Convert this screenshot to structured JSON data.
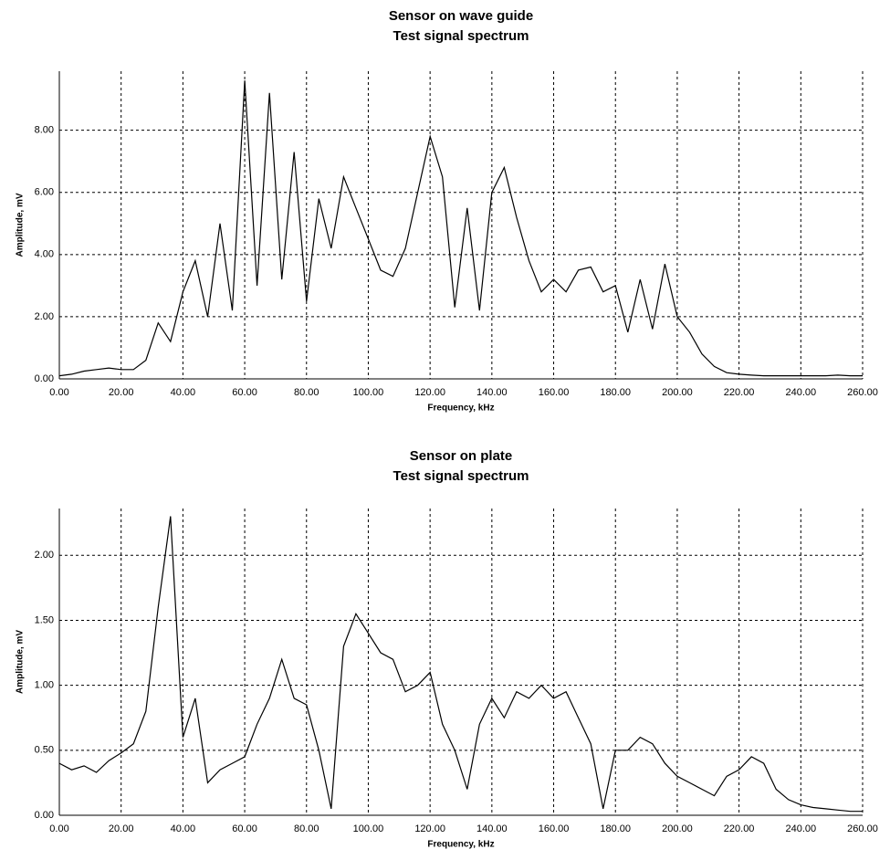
{
  "chart_data": [
    {
      "type": "line",
      "title": "Sensor on wave guide",
      "subtitle": "Test signal spectrum",
      "x_label": "Frequency, kHz",
      "y_label": "Amplitude, mV",
      "color": "#000000",
      "grid": true,
      "x": [
        0,
        4,
        8,
        12,
        16,
        20,
        24,
        28,
        32,
        36,
        40,
        44,
        48,
        52,
        56,
        60,
        64,
        68,
        72,
        76,
        80,
        84,
        88,
        92,
        96,
        100,
        104,
        108,
        112,
        116,
        120,
        124,
        128,
        132,
        136,
        140,
        144,
        148,
        152,
        156,
        160,
        164,
        168,
        172,
        176,
        180,
        184,
        188,
        192,
        196,
        200,
        204,
        208,
        212,
        216,
        220,
        224,
        228,
        232,
        236,
        240,
        244,
        248,
        252,
        256,
        260
      ],
      "values": [
        0.1,
        0.15,
        0.25,
        0.3,
        0.35,
        0.3,
        0.3,
        0.6,
        1.8,
        1.2,
        2.8,
        3.8,
        2.0,
        5.0,
        2.2,
        9.6,
        3.0,
        9.2,
        3.2,
        7.3,
        2.5,
        5.8,
        4.2,
        6.5,
        5.5,
        4.5,
        3.5,
        3.3,
        4.2,
        6.0,
        7.8,
        6.5,
        2.3,
        5.5,
        2.2,
        6.0,
        6.8,
        5.2,
        3.8,
        2.8,
        3.2,
        2.8,
        3.5,
        3.6,
        2.8,
        3.0,
        1.5,
        3.2,
        1.6,
        3.7,
        2.0,
        1.5,
        0.8,
        0.4,
        0.2,
        0.15,
        0.12,
        0.1,
        0.1,
        0.1,
        0.1,
        0.1,
        0.1,
        0.12,
        0.1,
        0.1
      ],
      "xlim": [
        0,
        260
      ],
      "ylim": [
        0,
        9.9
      ],
      "xticks": [
        {
          "value": 0,
          "label": "0.00"
        },
        {
          "value": 20,
          "label": "20.00"
        },
        {
          "value": 40,
          "label": "40.00"
        },
        {
          "value": 60,
          "label": "60.00"
        },
        {
          "value": 80,
          "label": "80.00"
        },
        {
          "value": 100,
          "label": "100.00"
        },
        {
          "value": 120,
          "label": "120.00"
        },
        {
          "value": 140,
          "label": "140.00"
        },
        {
          "value": 160,
          "label": "160.00"
        },
        {
          "value": 180,
          "label": "180.00"
        },
        {
          "value": 200,
          "label": "200.00"
        },
        {
          "value": 220,
          "label": "220.00"
        },
        {
          "value": 240,
          "label": "240.00"
        },
        {
          "value": 260,
          "label": "260.00"
        }
      ],
      "yticks": [
        {
          "value": 0,
          "label": "0.00"
        },
        {
          "value": 2,
          "label": "2.00"
        },
        {
          "value": 4,
          "label": "4.00"
        },
        {
          "value": 6,
          "label": "6.00"
        },
        {
          "value": 8,
          "label": "8.00"
        }
      ]
    },
    {
      "type": "line",
      "title": "Sensor on plate",
      "subtitle": "Test signal spectrum",
      "x_label": "Frequency, kHz",
      "y_label": "Amplitude, mV",
      "color": "#000000",
      "grid": true,
      "x": [
        0,
        4,
        8,
        12,
        16,
        20,
        24,
        28,
        32,
        36,
        40,
        44,
        48,
        52,
        56,
        60,
        64,
        68,
        72,
        76,
        80,
        84,
        88,
        92,
        96,
        100,
        104,
        108,
        112,
        116,
        120,
        124,
        128,
        132,
        136,
        140,
        144,
        148,
        152,
        156,
        160,
        164,
        168,
        172,
        176,
        180,
        184,
        188,
        192,
        196,
        200,
        204,
        208,
        212,
        216,
        220,
        224,
        228,
        232,
        236,
        240,
        244,
        248,
        252,
        256,
        260
      ],
      "values": [
        0.4,
        0.35,
        0.38,
        0.33,
        0.42,
        0.48,
        0.55,
        0.8,
        1.6,
        2.3,
        0.6,
        0.9,
        0.25,
        0.35,
        0.4,
        0.45,
        0.7,
        0.9,
        1.2,
        0.9,
        0.85,
        0.5,
        0.05,
        1.3,
        1.55,
        1.4,
        1.25,
        1.2,
        0.95,
        1.0,
        1.1,
        0.7,
        0.5,
        0.2,
        0.7,
        0.9,
        0.75,
        0.95,
        0.9,
        1.0,
        0.9,
        0.95,
        0.75,
        0.55,
        0.05,
        0.5,
        0.5,
        0.6,
        0.55,
        0.4,
        0.3,
        0.25,
        0.2,
        0.15,
        0.3,
        0.35,
        0.45,
        0.4,
        0.2,
        0.12,
        0.08,
        0.06,
        0.05,
        0.04,
        0.03,
        0.03
      ],
      "xlim": [
        0,
        260
      ],
      "ylim": [
        0,
        2.36
      ],
      "xticks": [
        {
          "value": 0,
          "label": "0.00"
        },
        {
          "value": 20,
          "label": "20.00"
        },
        {
          "value": 40,
          "label": "40.00"
        },
        {
          "value": 60,
          "label": "60.00"
        },
        {
          "value": 80,
          "label": "80.00"
        },
        {
          "value": 100,
          "label": "100.00"
        },
        {
          "value": 120,
          "label": "120.00"
        },
        {
          "value": 140,
          "label": "140.00"
        },
        {
          "value": 160,
          "label": "160.00"
        },
        {
          "value": 180,
          "label": "180.00"
        },
        {
          "value": 200,
          "label": "200.00"
        },
        {
          "value": 220,
          "label": "220.00"
        },
        {
          "value": 240,
          "label": "240.00"
        },
        {
          "value": 260,
          "label": "260.00"
        }
      ],
      "yticks": [
        {
          "value": 0,
          "label": "0.00"
        },
        {
          "value": 0.5,
          "label": "0.50"
        },
        {
          "value": 1,
          "label": "1.00"
        },
        {
          "value": 1.5,
          "label": "1.50"
        },
        {
          "value": 2,
          "label": "2.00"
        }
      ]
    }
  ]
}
